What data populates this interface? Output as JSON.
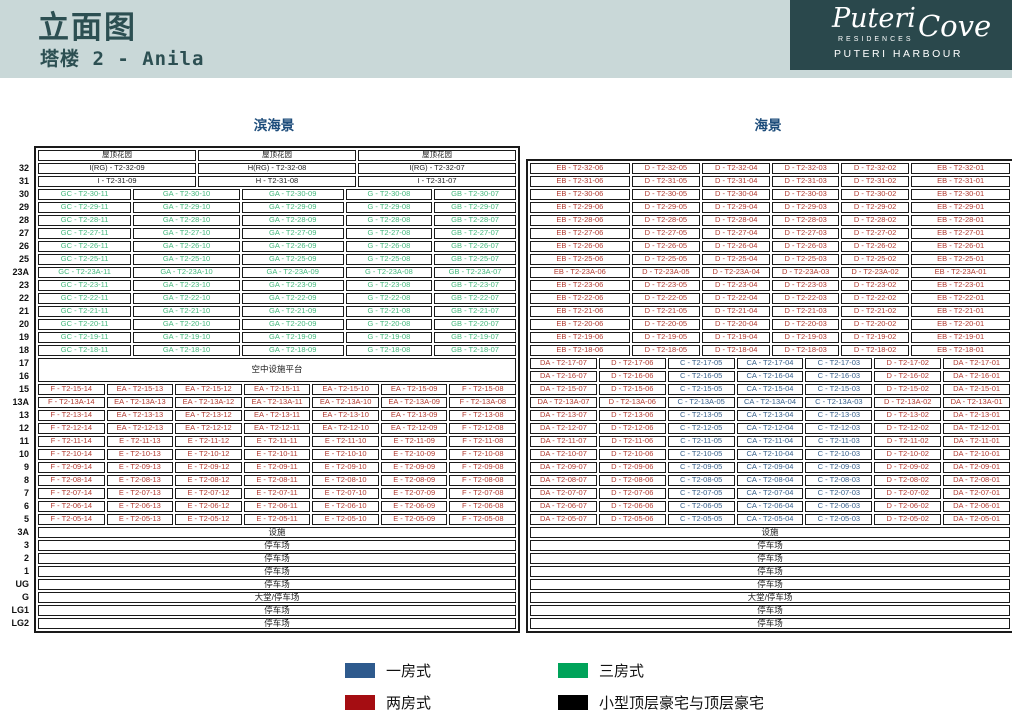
{
  "header": {
    "title": "立面图",
    "subtitle": "塔楼 2 - Anila"
  },
  "logo": {
    "script1": "Puteri",
    "script2": "Cove",
    "line2": "RESIDENCES",
    "line3": "PUTERI HARBOUR"
  },
  "floors": [
    "32",
    "31",
    "30",
    "29",
    "28",
    "27",
    "26",
    "25",
    "23A",
    "23",
    "22",
    "21",
    "20",
    "19",
    "18",
    "17",
    "16",
    "15",
    "13A",
    "13",
    "12",
    "11",
    "10",
    "9",
    "8",
    "7",
    "6",
    "5",
    "3A",
    "3",
    "2",
    "1",
    "UG",
    "G",
    "LG1",
    "LG2"
  ],
  "left_table": {
    "title": "滨海景",
    "rows": [
      {
        "layout": "thirds",
        "color": "black",
        "cells": [
          "屋顶花园",
          "屋顶花园",
          "屋顶花园"
        ]
      },
      {
        "layout": "thirds",
        "color": "black",
        "cells": [
          "I(RG) - T2-32-09",
          "H(RG) - T2-32-08",
          "I(RG) - T2-32-07"
        ]
      },
      {
        "layout": "thirds",
        "color": "black",
        "cells": [
          "I - T2-31-09",
          "H - T2-31-08",
          "I - T2-31-07"
        ]
      },
      {
        "layout": "five",
        "color": "green",
        "cells": [
          "GC - T2-30-11",
          "GA - T2-30-10",
          "GA - T2-30-09",
          "G - T2-30-08",
          "GB - T2-30-07"
        ]
      },
      {
        "layout": "five",
        "color": "green",
        "cells": [
          "GC - T2-29-11",
          "GA - T2-29-10",
          "GA - T2-29-09",
          "G - T2-29-08",
          "GB - T2-29-07"
        ]
      },
      {
        "layout": "five",
        "color": "green",
        "cells": [
          "GC - T2-28-11",
          "GA - T2-28-10",
          "GA - T2-28-09",
          "G - T2-28-08",
          "GB - T2-28-07"
        ]
      },
      {
        "layout": "five",
        "color": "green",
        "cells": [
          "GC - T2-27-11",
          "GA - T2-27-10",
          "GA - T2-27-09",
          "G - T2-27-08",
          "GB - T2-27-07"
        ]
      },
      {
        "layout": "five",
        "color": "green",
        "cells": [
          "GC - T2-26-11",
          "GA - T2-26-10",
          "GA - T2-26-09",
          "G - T2-26-08",
          "GB - T2-26-07"
        ]
      },
      {
        "layout": "five",
        "color": "green",
        "cells": [
          "GC - T2-25-11",
          "GA - T2-25-10",
          "GA - T2-25-09",
          "G - T2-25-08",
          "GB - T2-25-07"
        ]
      },
      {
        "layout": "five",
        "color": "green",
        "cells": [
          "GC - T2-23A-11",
          "GA - T2-23A-10",
          "GA - T2-23A-09",
          "G - T2-23A-08",
          "GB - T2-23A-07"
        ]
      },
      {
        "layout": "five",
        "color": "green",
        "cells": [
          "GC - T2-23-11",
          "GA - T2-23-10",
          "GA - T2-23-09",
          "G - T2-23-08",
          "GB - T2-23-07"
        ]
      },
      {
        "layout": "five",
        "color": "green",
        "cells": [
          "GC - T2-22-11",
          "GA - T2-22-10",
          "GA - T2-22-09",
          "G - T2-22-08",
          "GB - T2-22-07"
        ]
      },
      {
        "layout": "five",
        "color": "green",
        "cells": [
          "GC - T2-21-11",
          "GA - T2-21-10",
          "GA - T2-21-09",
          "G - T2-21-08",
          "GB - T2-21-07"
        ]
      },
      {
        "layout": "five",
        "color": "green",
        "cells": [
          "GC - T2-20-11",
          "GA - T2-20-10",
          "GA - T2-20-09",
          "G - T2-20-08",
          "GB - T2-20-07"
        ]
      },
      {
        "layout": "five",
        "color": "green",
        "cells": [
          "GC - T2-19-11",
          "GA - T2-19-10",
          "GA - T2-19-09",
          "G - T2-19-08",
          "GB - T2-19-07"
        ]
      },
      {
        "layout": "five",
        "color": "green",
        "cells": [
          "GC - T2-18-11",
          "GA - T2-18-10",
          "GA - T2-18-09",
          "G - T2-18-08",
          "GB - T2-18-07"
        ]
      },
      {
        "layout": "full",
        "tall": true,
        "color": "black",
        "cells": [
          "空中设施平台"
        ]
      },
      {
        "layout": "seven",
        "color": "red",
        "cells": [
          "F - T2-15-14",
          "EA - T2-15-13",
          "EA - T2-15-12",
          "EA - T2-15-11",
          "EA - T2-15-10",
          "EA - T2-15-09",
          "F - T2-15-08"
        ]
      },
      {
        "layout": "seven",
        "color": "red",
        "cells": [
          "F - T2-13A-14",
          "EA - T2-13A-13",
          "EA - T2-13A-12",
          "EA - T2-13A-11",
          "EA - T2-13A-10",
          "EA - T2-13A-09",
          "F - T2-13A-08"
        ]
      },
      {
        "layout": "seven",
        "color": "red",
        "cells": [
          "F - T2-13-14",
          "EA - T2-13-13",
          "EA - T2-13-12",
          "EA - T2-13-11",
          "EA - T2-13-10",
          "EA - T2-13-09",
          "F - T2-13-08"
        ]
      },
      {
        "layout": "seven",
        "color": "red",
        "cells": [
          "F - T2-12-14",
          "EA - T2-12-13",
          "EA - T2-12-12",
          "EA - T2-12-11",
          "EA - T2-12-10",
          "EA - T2-12-09",
          "F - T2-12-08"
        ]
      },
      {
        "layout": "seven",
        "color": "red",
        "cells": [
          "F - T2-11-14",
          "E - T2-11-13",
          "E - T2-11-12",
          "E - T2-11-11",
          "E - T2-11-10",
          "E - T2-11-09",
          "F - T2-11-08"
        ]
      },
      {
        "layout": "seven",
        "color": "red",
        "cells": [
          "F - T2-10-14",
          "E - T2-10-13",
          "E - T2-10-12",
          "E - T2-10-11",
          "E - T2-10-10",
          "E - T2-10-09",
          "F - T2-10-08"
        ]
      },
      {
        "layout": "seven",
        "color": "red",
        "cells": [
          "F - T2-09-14",
          "E - T2-09-13",
          "E - T2-09-12",
          "E - T2-09-11",
          "E - T2-09-10",
          "E - T2-09-09",
          "F - T2-09-08"
        ]
      },
      {
        "layout": "seven",
        "color": "red",
        "cells": [
          "F - T2-08-14",
          "E - T2-08-13",
          "E - T2-08-12",
          "E - T2-08-11",
          "E - T2-08-10",
          "E - T2-08-09",
          "F - T2-08-08"
        ]
      },
      {
        "layout": "seven",
        "color": "red",
        "cells": [
          "F - T2-07-14",
          "E - T2-07-13",
          "E - T2-07-12",
          "E - T2-07-11",
          "E - T2-07-10",
          "E - T2-07-09",
          "F - T2-07-08"
        ]
      },
      {
        "layout": "seven",
        "color": "red",
        "cells": [
          "F - T2-06-14",
          "E - T2-06-13",
          "E - T2-06-12",
          "E - T2-06-11",
          "E - T2-06-10",
          "E - T2-06-09",
          "F - T2-06-08"
        ]
      },
      {
        "layout": "seven",
        "color": "red",
        "cells": [
          "F - T2-05-14",
          "E - T2-05-13",
          "E - T2-05-12",
          "E - T2-05-11",
          "E - T2-05-10",
          "E - T2-05-09",
          "F - T2-05-08"
        ]
      },
      {
        "layout": "full",
        "color": "black",
        "cells": [
          "设施"
        ]
      },
      {
        "layout": "full",
        "color": "black",
        "cells": [
          "停车场"
        ]
      },
      {
        "layout": "full",
        "color": "black",
        "cells": [
          "停车场"
        ]
      },
      {
        "layout": "full",
        "color": "black",
        "cells": [
          "停车场"
        ]
      },
      {
        "layout": "full",
        "color": "black",
        "cells": [
          "停车场"
        ]
      },
      {
        "layout": "full",
        "color": "black",
        "cells": [
          "大堂/停车场"
        ]
      },
      {
        "layout": "full",
        "color": "black",
        "cells": [
          "停车场"
        ]
      },
      {
        "layout": "full",
        "color": "black",
        "cells": [
          "停车场"
        ]
      }
    ]
  },
  "right_table": {
    "title": "海景",
    "rows": [
      {
        "layout": "six",
        "color": "red",
        "cells": [
          "EB - T2-32-06",
          "D - T2-32-05",
          "D - T2-32-04",
          "D - T2-32-03",
          "D - T2-32-02",
          "EB - T2-32-01"
        ]
      },
      {
        "layout": "six",
        "color": "red",
        "cells": [
          "EB - T2-31-06",
          "D - T2-31-05",
          "D - T2-31-04",
          "D - T2-31-03",
          "D - T2-31-02",
          "EB - T2-31-01"
        ]
      },
      {
        "layout": "six",
        "color": "red",
        "cells": [
          "EB - T2-30-06",
          "D - T2-30-05",
          "D - T2-30-04",
          "D - T2-30-03",
          "D - T2-30-02",
          "EB - T2-30-01"
        ]
      },
      {
        "layout": "six",
        "color": "red",
        "cells": [
          "EB - T2-29-06",
          "D - T2-29-05",
          "D - T2-29-04",
          "D - T2-29-03",
          "D - T2-29-02",
          "EB - T2-29-01"
        ]
      },
      {
        "layout": "six",
        "color": "red",
        "cells": [
          "EB - T2-28-06",
          "D - T2-28-05",
          "D - T2-28-04",
          "D - T2-28-03",
          "D - T2-28-02",
          "EB - T2-28-01"
        ]
      },
      {
        "layout": "six",
        "color": "red",
        "cells": [
          "EB - T2-27-06",
          "D - T2-27-05",
          "D - T2-27-04",
          "D - T2-27-03",
          "D - T2-27-02",
          "EB - T2-27-01"
        ]
      },
      {
        "layout": "six",
        "color": "red",
        "cells": [
          "EB - T2-26-06",
          "D - T2-26-05",
          "D - T2-26-04",
          "D - T2-26-03",
          "D - T2-26-02",
          "EB - T2-26-01"
        ]
      },
      {
        "layout": "six",
        "color": "red",
        "cells": [
          "EB - T2-25-06",
          "D - T2-25-05",
          "D - T2-25-04",
          "D - T2-25-03",
          "D - T2-25-02",
          "EB - T2-25-01"
        ]
      },
      {
        "layout": "six",
        "color": "red",
        "cells": [
          "EB - T2-23A-06",
          "D - T2-23A-05",
          "D - T2-23A-04",
          "D - T2-23A-03",
          "D - T2-23A-02",
          "EB - T2-23A-01"
        ]
      },
      {
        "layout": "six",
        "color": "red",
        "cells": [
          "EB - T2-23-06",
          "D - T2-23-05",
          "D - T2-23-04",
          "D - T2-23-03",
          "D - T2-23-02",
          "EB - T2-23-01"
        ]
      },
      {
        "layout": "six",
        "color": "red",
        "cells": [
          "EB - T2-22-06",
          "D - T2-22-05",
          "D - T2-22-04",
          "D - T2-22-03",
          "D - T2-22-02",
          "EB - T2-22-01"
        ]
      },
      {
        "layout": "six",
        "color": "red",
        "cells": [
          "EB - T2-21-06",
          "D - T2-21-05",
          "D - T2-21-04",
          "D - T2-21-03",
          "D - T2-21-02",
          "EB - T2-21-01"
        ]
      },
      {
        "layout": "six",
        "color": "red",
        "cells": [
          "EB - T2-20-06",
          "D - T2-20-05",
          "D - T2-20-04",
          "D - T2-20-03",
          "D - T2-20-02",
          "EB - T2-20-01"
        ]
      },
      {
        "layout": "six",
        "color": "red",
        "cells": [
          "EB - T2-19-06",
          "D - T2-19-05",
          "D - T2-19-04",
          "D - T2-19-03",
          "D - T2-19-02",
          "EB - T2-19-01"
        ]
      },
      {
        "layout": "six",
        "color": "red",
        "cells": [
          "EB - T2-18-06",
          "D - T2-18-05",
          "D - T2-18-04",
          "D - T2-18-03",
          "D - T2-18-02",
          "EB - T2-18-01"
        ]
      },
      {
        "layout": "seven",
        "color": [
          "red",
          "red",
          "blue",
          "blue",
          "blue",
          "red",
          "red"
        ],
        "cells": [
          "DA - T2-17-07",
          "D - T2-17-06",
          "C - T2-17-05",
          "CA - T2-17-04",
          "C - T2-17-03",
          "D - T2-17-02",
          "DA - T2-17-01"
        ]
      },
      {
        "layout": "seven",
        "color": [
          "red",
          "red",
          "blue",
          "blue",
          "blue",
          "red",
          "red"
        ],
        "cells": [
          "DA - T2-16-07",
          "D - T2-16-06",
          "C - T2-16-05",
          "CA - T2-16-04",
          "C - T2-16-03",
          "D - T2-16-02",
          "DA - T2-16-01"
        ]
      },
      {
        "layout": "seven",
        "color": [
          "red",
          "red",
          "blue",
          "blue",
          "blue",
          "red",
          "red"
        ],
        "cells": [
          "DA - T2-15-07",
          "D - T2-15-06",
          "C - T2-15-05",
          "CA - T2-15-04",
          "C - T2-15-03",
          "D - T2-15-02",
          "DA - T2-15-01"
        ]
      },
      {
        "layout": "seven",
        "color": [
          "red",
          "red",
          "blue",
          "blue",
          "blue",
          "red",
          "red"
        ],
        "cells": [
          "DA - T2-13A-07",
          "D - T2-13A-06",
          "C - T2-13A-05",
          "CA - T2-13A-04",
          "C - T2-13A-03",
          "D - T2-13A-02",
          "DA - T2-13A-01"
        ]
      },
      {
        "layout": "seven",
        "color": [
          "red",
          "red",
          "blue",
          "blue",
          "blue",
          "red",
          "red"
        ],
        "cells": [
          "DA - T2-13-07",
          "D - T2-13-06",
          "C - T2-13-05",
          "CA - T2-13-04",
          "C - T2-13-03",
          "D - T2-13-02",
          "DA - T2-13-01"
        ]
      },
      {
        "layout": "seven",
        "color": [
          "red",
          "red",
          "blue",
          "blue",
          "blue",
          "red",
          "red"
        ],
        "cells": [
          "DA - T2-12-07",
          "D - T2-12-06",
          "C - T2-12-05",
          "CA - T2-12-04",
          "C - T2-12-03",
          "D - T2-12-02",
          "DA - T2-12-01"
        ]
      },
      {
        "layout": "seven",
        "color": [
          "red",
          "red",
          "blue",
          "blue",
          "blue",
          "red",
          "red"
        ],
        "cells": [
          "DA - T2-11-07",
          "D - T2-11-06",
          "C - T2-11-05",
          "CA - T2-11-04",
          "C - T2-11-03",
          "D - T2-11-02",
          "DA - T2-11-01"
        ]
      },
      {
        "layout": "seven",
        "color": [
          "red",
          "red",
          "blue",
          "blue",
          "blue",
          "red",
          "red"
        ],
        "cells": [
          "DA - T2-10-07",
          "D - T2-10-06",
          "C - T2-10-05",
          "CA - T2-10-04",
          "C - T2-10-03",
          "D - T2-10-02",
          "DA - T2-10-01"
        ]
      },
      {
        "layout": "seven",
        "color": [
          "red",
          "red",
          "blue",
          "blue",
          "blue",
          "red",
          "red"
        ],
        "cells": [
          "DA - T2-09-07",
          "D - T2-09-06",
          "C - T2-09-05",
          "CA - T2-09-04",
          "C - T2-09-03",
          "D - T2-09-02",
          "DA - T2-09-01"
        ]
      },
      {
        "layout": "seven",
        "color": [
          "red",
          "red",
          "blue",
          "blue",
          "blue",
          "red",
          "red"
        ],
        "cells": [
          "DA - T2-08-07",
          "D - T2-08-06",
          "C - T2-08-05",
          "CA - T2-08-04",
          "C - T2-08-03",
          "D - T2-08-02",
          "DA - T2-08-01"
        ]
      },
      {
        "layout": "seven",
        "color": [
          "red",
          "red",
          "blue",
          "blue",
          "blue",
          "red",
          "red"
        ],
        "cells": [
          "DA - T2-07-07",
          "D - T2-07-06",
          "C - T2-07-05",
          "CA - T2-07-04",
          "C - T2-07-03",
          "D - T2-07-02",
          "DA - T2-07-01"
        ]
      },
      {
        "layout": "seven",
        "color": [
          "red",
          "red",
          "blue",
          "blue",
          "blue",
          "red",
          "red"
        ],
        "cells": [
          "DA - T2-06-07",
          "D - T2-06-06",
          "C - T2-06-05",
          "CA - T2-06-04",
          "C - T2-06-03",
          "D - T2-06-02",
          "DA - T2-06-01"
        ]
      },
      {
        "layout": "seven",
        "color": [
          "red",
          "red",
          "blue",
          "blue",
          "blue",
          "red",
          "red"
        ],
        "cells": [
          "DA - T2-05-07",
          "D - T2-05-06",
          "C - T2-05-05",
          "CA - T2-05-04",
          "C - T2-05-03",
          "D - T2-05-02",
          "DA - T2-05-01"
        ]
      },
      {
        "layout": "full",
        "color": "black",
        "cells": [
          "设施"
        ]
      },
      {
        "layout": "full",
        "color": "black",
        "cells": [
          "停车场"
        ]
      },
      {
        "layout": "full",
        "color": "black",
        "cells": [
          "停车场"
        ]
      },
      {
        "layout": "full",
        "color": "black",
        "cells": [
          "停车场"
        ]
      },
      {
        "layout": "full",
        "color": "black",
        "cells": [
          "停车场"
        ]
      },
      {
        "layout": "full",
        "color": "black",
        "cells": [
          "大堂/停车场"
        ]
      },
      {
        "layout": "full",
        "color": "black",
        "cells": [
          "停车场"
        ]
      },
      {
        "layout": "full",
        "color": "black",
        "cells": [
          "停车场"
        ]
      }
    ]
  },
  "legend": {
    "items": [
      {
        "label": "一房式",
        "color": "#2e5a8d"
      },
      {
        "label": "两房式",
        "color": "#a50d12"
      },
      {
        "label": "三房式",
        "color": "#00a35a"
      },
      {
        "label": "小型顶层豪宅与顶层豪宅",
        "color": "#000000"
      }
    ]
  },
  "colors": {
    "band": "#c9d8d8",
    "title_teal": "#2c4f52",
    "logo_bg": "#2a484c",
    "section_title_blue": "#1e4d7b",
    "unit_green": "#45b97e",
    "unit_red": "#b23a30",
    "unit_blue": "#38618c"
  }
}
